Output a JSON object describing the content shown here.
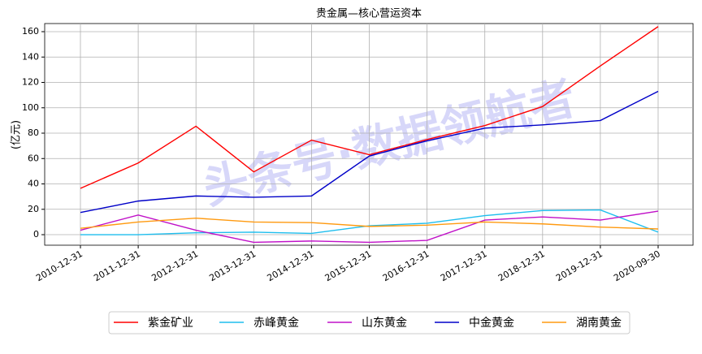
{
  "chart_data": {
    "type": "line",
    "title": "贵金属—核心营运资本",
    "y_label": "(亿元)",
    "watermark": "头条号·数据领航者",
    "categories": [
      "2010-12-31",
      "2011-12-31",
      "2012-12-31",
      "2013-12-31",
      "2014-12-31",
      "2015-12-31",
      "2016-12-31",
      "2017-12-31",
      "2018-12-31",
      "2019-12-31",
      "2020-09-30"
    ],
    "series": [
      {
        "name": "紫金矿业",
        "color": "#ff0000",
        "values": [
          36.5,
          56.5,
          85.5,
          49.5,
          74.5,
          63,
          75,
          86,
          101,
          133,
          164
        ]
      },
      {
        "name": "赤峰黄金",
        "color": "#1ebeee",
        "values": [
          0,
          0,
          1.5,
          2,
          1,
          7,
          9,
          15,
          19,
          19.5,
          2
        ]
      },
      {
        "name": "山东黄金",
        "color": "#c010c8",
        "values": [
          3.5,
          15.5,
          3.5,
          -6,
          -5,
          -6,
          -4.5,
          11.5,
          14,
          11.5,
          18.5
        ]
      },
      {
        "name": "中金黄金",
        "color": "#0000c8",
        "values": [
          17.5,
          26.5,
          30.5,
          29.5,
          30.5,
          62,
          74,
          84,
          86.5,
          90,
          113
        ]
      },
      {
        "name": "湖南黄金",
        "color": "#ff9a10",
        "values": [
          5,
          10,
          13,
          10,
          9.5,
          6.5,
          7.5,
          10,
          8.5,
          6,
          4.5
        ]
      }
    ],
    "ylim": [
      -8.3,
      166.4
    ],
    "yticks": [
      0,
      20,
      40,
      60,
      80,
      100,
      120,
      140,
      160
    ],
    "grid": true,
    "legend": "bottom"
  }
}
